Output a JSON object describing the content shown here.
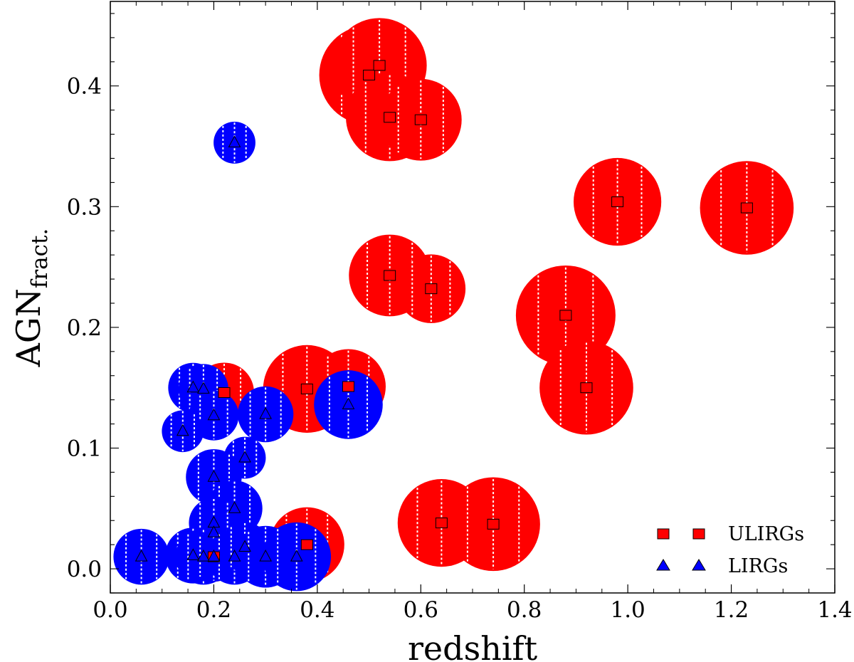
{
  "chart_data": {
    "type": "scatter",
    "xlabel": "redshift",
    "ylabel": {
      "main": "AGN",
      "subscript": "fract."
    },
    "xlim": [
      0.0,
      1.4
    ],
    "ylim": [
      -0.02,
      0.47
    ],
    "xticks": [
      0.0,
      0.2,
      0.4,
      0.6,
      0.8,
      1.0,
      1.2,
      1.4
    ],
    "xtick_labels": [
      "0.0",
      "0.2",
      "0.4",
      "0.6",
      "0.8",
      "1.0",
      "1.2",
      "1.4"
    ],
    "yticks": [
      0.0,
      0.1,
      0.2,
      0.3,
      0.4
    ],
    "ytick_labels": [
      "0.0",
      "0.1",
      "0.2",
      "0.3",
      "0.4"
    ],
    "grid": false,
    "legend_position": "bottom-right",
    "legend": [
      {
        "label": "ULIRGs",
        "marker": "square",
        "color": "#ff0000"
      },
      {
        "label": "LIRGs",
        "marker": "triangle",
        "color": "#0000ff"
      }
    ],
    "series": [
      {
        "name": "ULIRGs",
        "marker": "square",
        "color": "#ff0000",
        "points": [
          {
            "x": 0.5,
            "y": 0.409,
            "size": 1.0
          },
          {
            "x": 0.52,
            "y": 0.417,
            "size": 0.95
          },
          {
            "x": 0.54,
            "y": 0.374,
            "size": 0.88
          },
          {
            "x": 0.6,
            "y": 0.372,
            "size": 0.82
          },
          {
            "x": 0.98,
            "y": 0.304,
            "size": 0.88
          },
          {
            "x": 1.23,
            "y": 0.299,
            "size": 0.94
          },
          {
            "x": 0.54,
            "y": 0.243,
            "size": 0.82
          },
          {
            "x": 0.62,
            "y": 0.232,
            "size": 0.69
          },
          {
            "x": 0.88,
            "y": 0.21,
            "size": 1.0
          },
          {
            "x": 0.92,
            "y": 0.15,
            "size": 0.94
          },
          {
            "x": 0.22,
            "y": 0.146,
            "size": 0.6
          },
          {
            "x": 0.38,
            "y": 0.149,
            "size": 0.88
          },
          {
            "x": 0.46,
            "y": 0.151,
            "size": 0.75
          },
          {
            "x": 0.64,
            "y": 0.038,
            "size": 0.88
          },
          {
            "x": 0.74,
            "y": 0.037,
            "size": 0.94
          },
          {
            "x": 0.2,
            "y": 0.01,
            "size": 0.5
          },
          {
            "x": 0.38,
            "y": 0.02,
            "size": 0.75
          }
        ]
      },
      {
        "name": "LIRGs",
        "marker": "triangle",
        "color": "#0000ff",
        "points": [
          {
            "x": 0.24,
            "y": 0.353,
            "size": 0.42
          },
          {
            "x": 0.16,
            "y": 0.15,
            "size": 0.5
          },
          {
            "x": 0.18,
            "y": 0.149,
            "size": 0.5
          },
          {
            "x": 0.2,
            "y": 0.127,
            "size": 0.5
          },
          {
            "x": 0.14,
            "y": 0.114,
            "size": 0.42
          },
          {
            "x": 0.3,
            "y": 0.128,
            "size": 0.56
          },
          {
            "x": 0.46,
            "y": 0.136,
            "size": 0.69
          },
          {
            "x": 0.26,
            "y": 0.092,
            "size": 0.42
          },
          {
            "x": 0.2,
            "y": 0.076,
            "size": 0.56
          },
          {
            "x": 0.24,
            "y": 0.05,
            "size": 0.56
          },
          {
            "x": 0.2,
            "y": 0.038,
            "size": 0.5
          },
          {
            "x": 0.2,
            "y": 0.03,
            "size": 0.5
          },
          {
            "x": 0.06,
            "y": 0.01,
            "size": 0.56
          },
          {
            "x": 0.16,
            "y": 0.011,
            "size": 0.56
          },
          {
            "x": 0.18,
            "y": 0.01,
            "size": 0.56
          },
          {
            "x": 0.2,
            "y": 0.01,
            "size": 0.5
          },
          {
            "x": 0.24,
            "y": 0.01,
            "size": 0.56
          },
          {
            "x": 0.26,
            "y": 0.018,
            "size": 0.5
          },
          {
            "x": 0.3,
            "y": 0.01,
            "size": 0.62
          },
          {
            "x": 0.36,
            "y": 0.01,
            "size": 0.69
          }
        ]
      }
    ]
  }
}
